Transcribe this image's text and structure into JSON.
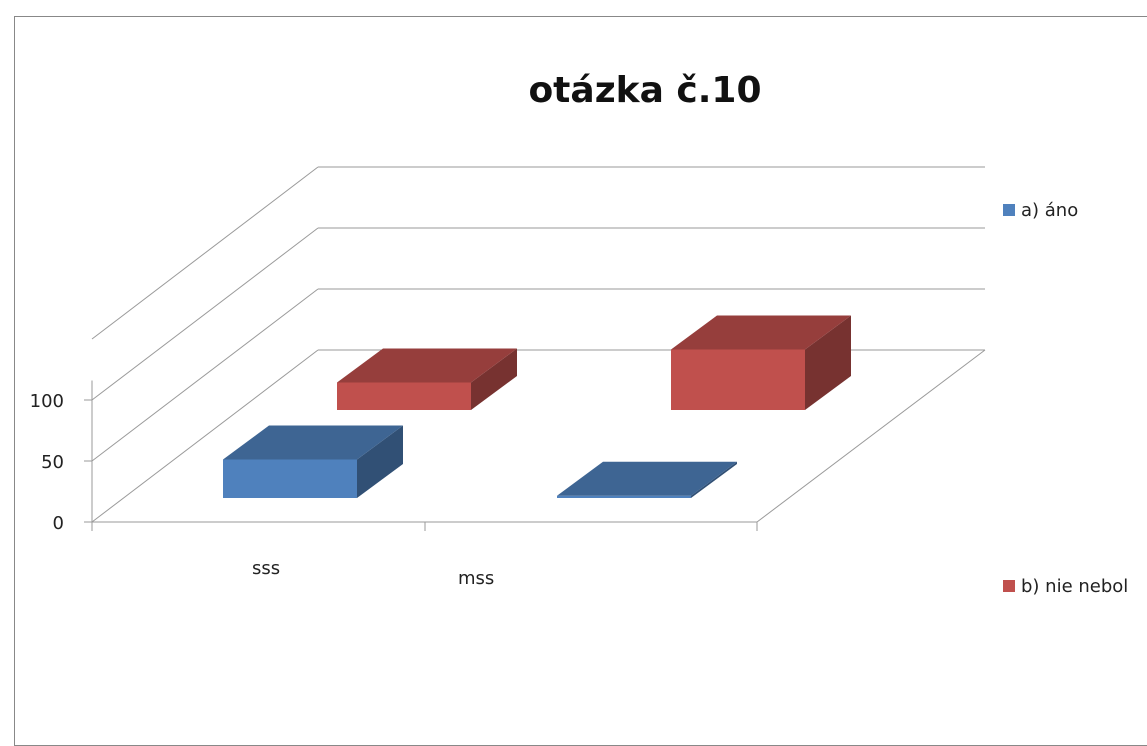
{
  "chart_data": {
    "type": "bar",
    "title": "otázka č.10",
    "categories": [
      "sss",
      "mss"
    ],
    "series": [
      {
        "name": "a)   áno",
        "values": [
          35,
          2
        ],
        "color": "#4F81BD"
      },
      {
        "name": "b)   nie nebol",
        "values": [
          25,
          55
        ],
        "color": "#C0504D"
      }
    ],
    "yticks": [
      0,
      50,
      100
    ],
    "ylim": [
      0,
      150
    ],
    "legend_position": "right",
    "grid": true,
    "view": "3d"
  }
}
